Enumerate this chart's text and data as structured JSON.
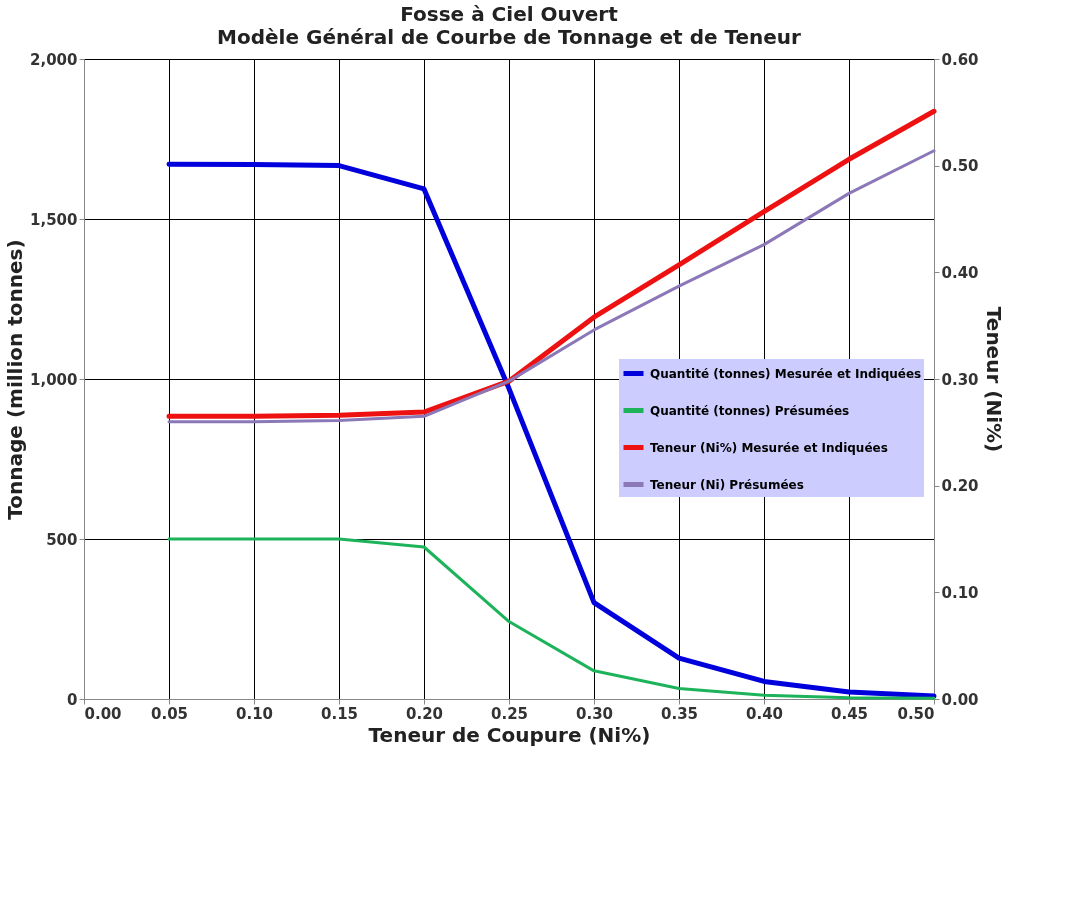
{
  "chart_data": {
    "type": "line",
    "title": "Fosse à Ciel Ouvert",
    "subtitle": "Modèle Général de Courbe de Tonnage et de Teneur",
    "xlabel": "Teneur de Coupure (Ni%)",
    "ylabel": "Tonnage (million tonnes)",
    "y2label": "Teneur (Ni%)",
    "x": [
      0.05,
      0.1,
      0.15,
      0.2,
      0.25,
      0.3,
      0.35,
      0.4,
      0.45,
      0.5
    ],
    "series": [
      {
        "name": "Quantité (tonnes) Mesurée et Indiquées",
        "color": "#0000dd",
        "values": [
          1671,
          1670,
          1667,
          1594,
          970,
          301,
          128,
          55,
          22,
          9
        ]
      },
      {
        "name": "Quantité (tonnes) Présumées",
        "color": "#1db35a",
        "values": [
          500,
          500,
          500,
          475,
          242,
          88,
          33,
          12,
          4,
          2
        ]
      },
      {
        "name": "Teneur (Ni%) Mesurée et Indiquées",
        "color": "#ee1111",
        "axis": "y2",
        "values": [
          0.265,
          0.265,
          0.266,
          0.269,
          0.298,
          0.358,
          0.407,
          0.457,
          0.506,
          0.551
        ]
      },
      {
        "name": "Teneur (Ni) Présumées",
        "color": "#8a78b8",
        "axis": "y2",
        "values": [
          0.26,
          0.26,
          0.261,
          0.265,
          0.298,
          0.346,
          0.387,
          0.426,
          0.474,
          0.514
        ]
      }
    ],
    "xlim": [
      0,
      0.5
    ],
    "xticks": [
      {
        "value": 0,
        "label": "0.00"
      },
      {
        "value": 0.05,
        "label": "0.05"
      },
      {
        "value": 0.1,
        "label": "0.10"
      },
      {
        "value": 0.15,
        "label": "0.15"
      },
      {
        "value": 0.2,
        "label": "0.20"
      },
      {
        "value": 0.25,
        "label": "0.25"
      },
      {
        "value": 0.3,
        "label": "0.30"
      },
      {
        "value": 0.35,
        "label": "0.35"
      },
      {
        "value": 0.4,
        "label": "0.40"
      },
      {
        "value": 0.45,
        "label": "0.45"
      },
      {
        "value": 0.5,
        "label": "0.50"
      }
    ],
    "ylim": [
      0,
      2000
    ],
    "yticks": [
      0,
      500,
      {
        "value": 1000,
        "label": "1,000"
      },
      {
        "value": 1500,
        "label": "1,500"
      },
      {
        "value": 2000,
        "label": "2,000"
      }
    ],
    "y2lim": [
      0,
      0.6
    ],
    "y2ticks": [
      {
        "value": 0,
        "label": "0.00"
      },
      {
        "value": 0.1,
        "label": "0.10"
      },
      {
        "value": 0.2,
        "label": "0.20"
      },
      {
        "value": 0.3,
        "label": "0.30"
      },
      {
        "value": 0.4,
        "label": "0.40"
      },
      {
        "value": 0.5,
        "label": "0.50"
      },
      {
        "value": 0.6,
        "label": "0.60"
      }
    ],
    "grid": true,
    "legend": "right",
    "marker": "none",
    "line_style": "solid"
  }
}
